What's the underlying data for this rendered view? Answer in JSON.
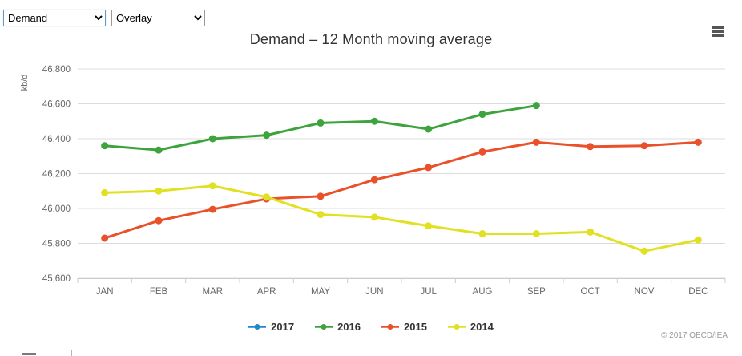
{
  "controls": {
    "metric_select": {
      "value": "Demand"
    },
    "overlay_select": {
      "value": "Overlay"
    }
  },
  "header": {
    "title": "Demand – 12 Month moving average",
    "menu_icon": "hamburger-icon"
  },
  "chart_data": {
    "type": "line",
    "title": "Demand – 12 Month moving average",
    "xlabel": "",
    "ylabel": "kb/d",
    "categories": [
      "JAN",
      "FEB",
      "MAR",
      "APR",
      "MAY",
      "JUN",
      "JUL",
      "AUG",
      "SEP",
      "OCT",
      "NOV",
      "DEC"
    ],
    "ylim": [
      45600,
      46800
    ],
    "ytick_interval": 200,
    "ytick_labels": [
      "45,600",
      "45,800",
      "46,000",
      "46,200",
      "46,400",
      "46,600",
      "46,800"
    ],
    "grid": true,
    "legend_position": "bottom",
    "series": [
      {
        "name": "2017",
        "color": "#2387c8",
        "values": []
      },
      {
        "name": "2016",
        "color": "#3da43d",
        "values": [
          46360,
          46335,
          46400,
          46420,
          46490,
          46500,
          46455,
          46540,
          46590
        ]
      },
      {
        "name": "2015",
        "color": "#e8512a",
        "values": [
          45830,
          45930,
          45995,
          46055,
          46070,
          46165,
          46235,
          46325,
          46380,
          46355,
          46360,
          46380
        ]
      },
      {
        "name": "2014",
        "color": "#e2e022",
        "values": [
          46090,
          46100,
          46130,
          46065,
          45965,
          45950,
          45900,
          45855,
          45855,
          45865,
          45755,
          45820
        ]
      }
    ],
    "colors": {
      "gridline": "#dcdcdc",
      "axis": "#cccccc",
      "axis_label": "#666666",
      "title": "#333333"
    }
  },
  "footer": {
    "copyright": "© 2017 OECD/IEA"
  }
}
